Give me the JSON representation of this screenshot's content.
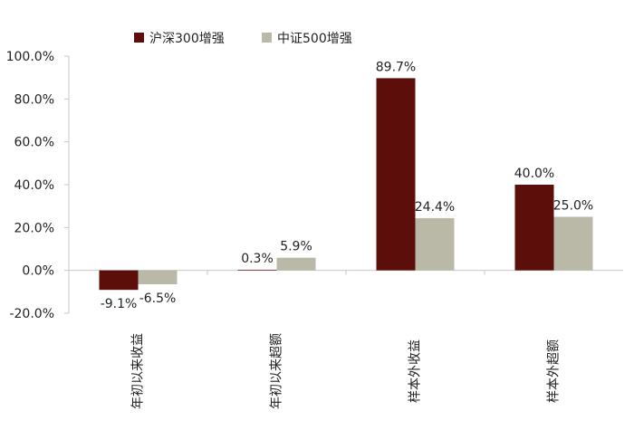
{
  "chart_data": {
    "type": "bar",
    "categories": [
      "年初以来收益",
      "年初以来超额",
      "样本外收益",
      "样本外超额"
    ],
    "series": [
      {
        "name": "沪深300增强",
        "color": "#5c0f0a",
        "values": [
          -9.1,
          0.3,
          89.7,
          40.0
        ],
        "labels": [
          "-9.1%",
          "0.3%",
          "89.7%",
          "40.0%"
        ]
      },
      {
        "name": "中证500增强",
        "color": "#bab9a8",
        "values": [
          -6.5,
          5.9,
          24.4,
          25.0
        ],
        "labels": [
          "-6.5%",
          "5.9%",
          "24.4%",
          "25.0%"
        ]
      }
    ],
    "yticks": [
      "100.0%",
      "80.0%",
      "60.0%",
      "40.0%",
      "20.0%",
      "0.0%",
      "-20.0%"
    ],
    "ylim": [
      -20,
      100
    ],
    "grid": false,
    "legend_position": "top"
  }
}
